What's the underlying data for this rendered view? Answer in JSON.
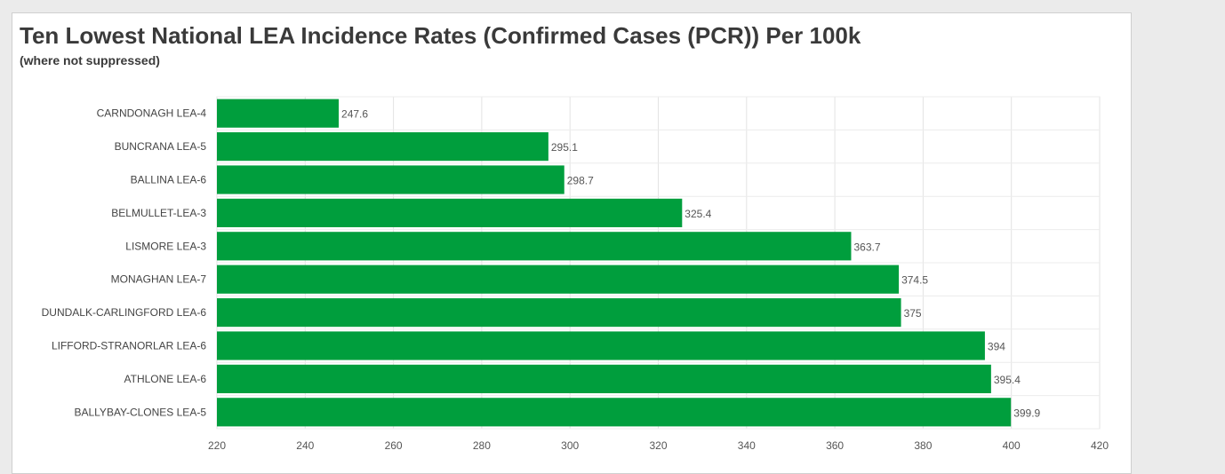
{
  "chart_data": {
    "type": "bar",
    "orientation": "horizontal",
    "title": "Ten Lowest National LEA Incidence Rates (Confirmed Cases (PCR)) Per 100k",
    "subtitle": "(where not suppressed)",
    "categories": [
      "CARNDONAGH LEA-4",
      "BUNCRANA LEA-5",
      "BALLINA LEA-6",
      "BELMULLET-LEA-3",
      "LISMORE LEA-3",
      "MONAGHAN LEA-7",
      "DUNDALK-CARLINGFORD LEA-6",
      "LIFFORD-STRANORLAR LEA-6",
      "ATHLONE LEA-6",
      "BALLYBAY-CLONES LEA-5"
    ],
    "values": [
      247.6,
      295.1,
      298.7,
      325.4,
      363.7,
      374.5,
      375,
      394,
      395.4,
      399.9
    ],
    "value_labels": [
      "247.6",
      "295.1",
      "298.7",
      "325.4",
      "363.7",
      "374.5",
      "375",
      "394",
      "395.4",
      "399.9"
    ],
    "xlim": [
      220,
      420
    ],
    "x_ticks": [
      220,
      240,
      260,
      280,
      300,
      320,
      340,
      360,
      380,
      400,
      420
    ],
    "grid": true,
    "bar_color": "#009e3d"
  }
}
